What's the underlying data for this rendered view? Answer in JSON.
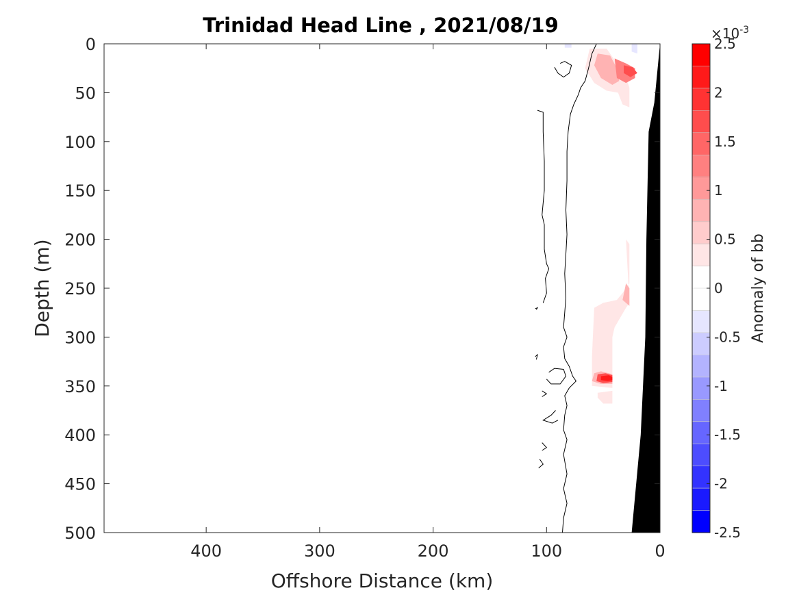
{
  "chart_data": {
    "type": "heatmap",
    "title": "Trinidad Head Line , 2021/08/19",
    "xlabel": "Offshore Distance (km)",
    "ylabel": "Depth (m)",
    "xlim": [
      490,
      0
    ],
    "ylim": [
      0,
      500
    ],
    "x_reversed": true,
    "y_reversed": true,
    "xticks": [
      400,
      300,
      200,
      100,
      0
    ],
    "yticks": [
      0,
      50,
      100,
      150,
      200,
      250,
      300,
      350,
      400,
      450,
      500
    ],
    "colorbar": {
      "label": "Anomaly of bb",
      "exponent_label": "×10",
      "exponent_sup": "-3",
      "min": -2.5,
      "max": 2.5,
      "levels": 20,
      "ticks": [
        -2.5,
        -2,
        -1.5,
        -1,
        -0.5,
        0,
        0.5,
        1,
        1.5,
        2,
        2.5
      ],
      "tick_labels": [
        "-2.5",
        "-2",
        "-1.5",
        "-1",
        "-0.5",
        "0",
        "0.5",
        "1",
        "1.5",
        "2",
        "2.5"
      ],
      "colors": [
        "#0000ff",
        "#1a1aff",
        "#3333ff",
        "#4d4dff",
        "#6666ff",
        "#8080ff",
        "#9999ff",
        "#b3b3ff",
        "#ccccff",
        "#e6e6ff",
        "#ffffff",
        "#ffffff",
        "#ffe6e6",
        "#ffcccc",
        "#ffb3b3",
        "#ff9999",
        "#ff8080",
        "#ff6666",
        "#ff4d4d",
        "#ff3333",
        "#ff1a1a",
        "#ff0000"
      ]
    },
    "bathymetry": {
      "color": "#000000",
      "points": [
        [
          0,
          0
        ],
        [
          5,
          60
        ],
        [
          10,
          90
        ],
        [
          12,
          200
        ],
        [
          13,
          300
        ],
        [
          17,
          400
        ],
        [
          21,
          450
        ],
        [
          25,
          500
        ],
        [
          0,
          500
        ]
      ]
    },
    "anomaly_patches": [
      {
        "value": 0.25,
        "points": [
          [
            62,
            5
          ],
          [
            47,
            5
          ],
          [
            38,
            20
          ],
          [
            31,
            30
          ],
          [
            27,
            45
          ],
          [
            27,
            65
          ],
          [
            33,
            62
          ],
          [
            37,
            50
          ],
          [
            47,
            48
          ],
          [
            58,
            40
          ],
          [
            66,
            25
          ]
        ]
      },
      {
        "value": 0.75,
        "points": [
          [
            55,
            10
          ],
          [
            44,
            12
          ],
          [
            38,
            25
          ],
          [
            36,
            38
          ],
          [
            42,
            42
          ],
          [
            52,
            35
          ],
          [
            58,
            22
          ]
        ]
      },
      {
        "value": 1.25,
        "points": [
          [
            40,
            15
          ],
          [
            30,
            20
          ],
          [
            22,
            25
          ],
          [
            22,
            35
          ],
          [
            30,
            40
          ],
          [
            38,
            35
          ]
        ]
      },
      {
        "value": 1.75,
        "points": [
          [
            32,
            22
          ],
          [
            24,
            24
          ],
          [
            20,
            30
          ],
          [
            26,
            34
          ],
          [
            32,
            30
          ]
        ]
      },
      {
        "value": -0.25,
        "points": [
          [
            84,
            0
          ],
          [
            78,
            0
          ],
          [
            78,
            4
          ],
          [
            84,
            4
          ]
        ]
      },
      {
        "value": -0.25,
        "points": [
          [
            25,
            0
          ],
          [
            20,
            0
          ],
          [
            20,
            10
          ],
          [
            25,
            8
          ]
        ]
      },
      {
        "value": 0.25,
        "points": [
          [
            30,
            200
          ],
          [
            27,
            205
          ],
          [
            27,
            245
          ],
          [
            33,
            255
          ],
          [
            38,
            262
          ],
          [
            50,
            265
          ],
          [
            58,
            270
          ],
          [
            60,
            320
          ],
          [
            60,
            350
          ],
          [
            42,
            352
          ],
          [
            42,
            300
          ],
          [
            40,
            290
          ],
          [
            30,
            270
          ],
          [
            27,
            265
          ]
        ]
      },
      {
        "value": 0.75,
        "points": [
          [
            30,
            245
          ],
          [
            27,
            250
          ],
          [
            27,
            268
          ],
          [
            33,
            262
          ]
        ]
      },
      {
        "value": 0.75,
        "points": [
          [
            58,
            337
          ],
          [
            52,
            335
          ],
          [
            42,
            338
          ],
          [
            42,
            348
          ],
          [
            52,
            348
          ],
          [
            60,
            345
          ]
        ]
      },
      {
        "value": 1.75,
        "points": [
          [
            55,
            338
          ],
          [
            48,
            337
          ],
          [
            42,
            339
          ],
          [
            42,
            346
          ],
          [
            50,
            347
          ],
          [
            56,
            345
          ]
        ]
      },
      {
        "value": 2.25,
        "points": [
          [
            52,
            340
          ],
          [
            45,
            339
          ],
          [
            42,
            341
          ],
          [
            42,
            344
          ],
          [
            46,
            345
          ],
          [
            52,
            344
          ]
        ]
      },
      {
        "value": 0.25,
        "points": [
          [
            55,
            357
          ],
          [
            42,
            355
          ],
          [
            42,
            368
          ],
          [
            50,
            368
          ],
          [
            55,
            362
          ]
        ]
      }
    ],
    "zero_contours": [
      {
        "points": [
          [
            56,
            0
          ],
          [
            60,
            10
          ],
          [
            63,
            25
          ],
          [
            66,
            38
          ],
          [
            70,
            45
          ],
          [
            72,
            52
          ],
          [
            76,
            62
          ],
          [
            79,
            72
          ],
          [
            81,
            90
          ],
          [
            82,
            110
          ],
          [
            82,
            140
          ],
          [
            83,
            170
          ],
          [
            82,
            195
          ],
          [
            83,
            215
          ],
          [
            84,
            235
          ],
          [
            83,
            260
          ],
          [
            84,
            275
          ],
          [
            85,
            290
          ],
          [
            82,
            300
          ],
          [
            85,
            310
          ],
          [
            84,
            322
          ],
          [
            80,
            330
          ],
          [
            77,
            340
          ],
          [
            74,
            345
          ],
          [
            80,
            352
          ],
          [
            84,
            360
          ],
          [
            82,
            370
          ],
          [
            84,
            380
          ],
          [
            85,
            395
          ],
          [
            82,
            405
          ],
          [
            85,
            420
          ],
          [
            82,
            440
          ],
          [
            85,
            455
          ],
          [
            82,
            470
          ],
          [
            85,
            485
          ],
          [
            86,
            500
          ]
        ]
      },
      {
        "points": [
          [
            88,
            20
          ],
          [
            84,
            18
          ],
          [
            78,
            22
          ],
          [
            80,
            30
          ],
          [
            85,
            34
          ],
          [
            90,
            30
          ],
          [
            93,
            24
          ]
        ]
      },
      {
        "points": [
          [
            108,
            68
          ],
          [
            103,
            70
          ],
          [
            103,
            90
          ],
          [
            102,
            120
          ],
          [
            102,
            150
          ],
          [
            104,
            175
          ],
          [
            102,
            185
          ],
          [
            102,
            210
          ],
          [
            100,
            225
          ],
          [
            98,
            230
          ],
          [
            101,
            240
          ],
          [
            100,
            255
          ],
          [
            103,
            265
          ]
        ]
      },
      {
        "points": [
          [
            98,
            336
          ],
          [
            93,
            332
          ],
          [
            85,
            333
          ],
          [
            83,
            340
          ],
          [
            88,
            348
          ],
          [
            96,
            348
          ],
          [
            100,
            343
          ]
        ]
      },
      {
        "points": [
          [
            110,
            320
          ],
          [
            108,
            318
          ],
          [
            109,
            323
          ]
        ]
      },
      {
        "points": [
          [
            110,
            271
          ],
          [
            108,
            270
          ],
          [
            109,
            272
          ]
        ]
      },
      {
        "points": [
          [
            104,
            355
          ],
          [
            100,
            358
          ],
          [
            104,
            361
          ]
        ]
      },
      {
        "points": [
          [
            92,
            375
          ],
          [
            96,
            380
          ],
          [
            103,
            385
          ],
          [
            95,
            388
          ],
          [
            90,
            385
          ]
        ]
      },
      {
        "points": [
          [
            104,
            408
          ],
          [
            100,
            413
          ],
          [
            104,
            416
          ]
        ]
      },
      {
        "points": [
          [
            106,
            425
          ],
          [
            103,
            430
          ],
          [
            107,
            434
          ]
        ]
      }
    ]
  }
}
